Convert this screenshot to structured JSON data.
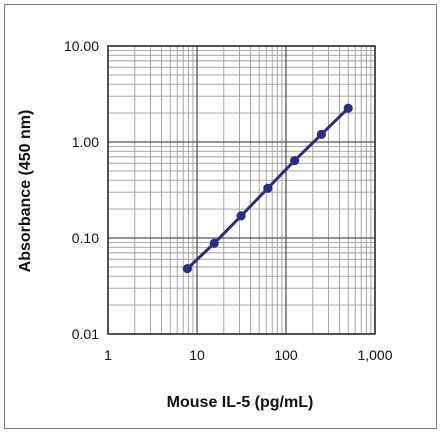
{
  "chart_data": {
    "type": "scatter",
    "xlabel": "Mouse IL-5 (pg/mL)",
    "ylabel": "Absorbance (450 nm)",
    "x_scale": "log",
    "y_scale": "log",
    "xlim": [
      1,
      1000
    ],
    "ylim": [
      0.01,
      10
    ],
    "x_ticks": [
      1,
      10,
      100,
      1000
    ],
    "x_tick_labels": [
      "1",
      "10",
      "100",
      "1,000"
    ],
    "y_ticks": [
      0.01,
      0.1,
      1,
      10
    ],
    "y_tick_labels": [
      "0.01",
      "0.10",
      "1.00",
      "10.00"
    ],
    "grid": true,
    "series": [
      {
        "color": "#2b2f7e",
        "marker": "circle",
        "line": true,
        "x": [
          7.8,
          15.6,
          31.3,
          62.5,
          125,
          250,
          500
        ],
        "y": [
          0.048,
          0.088,
          0.17,
          0.33,
          0.64,
          1.2,
          2.25
        ]
      }
    ]
  }
}
